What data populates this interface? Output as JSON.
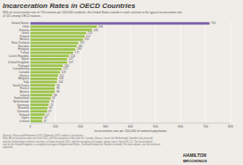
{
  "chart_data": {
    "type": "bar",
    "orientation": "horizontal",
    "title": "Incarceration Rates in OECD Countries",
    "subtitle": "With an incarceration rate of 716 inmates per 100,000 residents, the United States stands in stark contrast to the typical incarceration rate\nof 115 among OECD nations.",
    "xlabel": "Incarceration rate per 100,000 of national population",
    "annotations": [
      "Sources: Glaza and Herberman 2013. Walmsley 2013; authors' calculations.\nNote: All incarceration rates are from 2011, with the exception of the rates for Canada, Greece, Israel, the Netherlands, Sweden (not pictured)\nand the United States of these countries, all data are from 2010, with the exception of Canada, whose rate is from 2011-12. The incarceration\nrate for the United Kingdom is a weighted average of England and Wales, Scotland Ireland (inc Northern Ireland). For more details, see the technical\nappendix.",
      "HAMILTON",
      "BROOKINGS"
    ],
    "categories": [
      "United States",
      "Chile",
      "Estonia",
      "Israel",
      "Poland",
      "Mexico",
      "New Zealand",
      "Slovakia",
      "Hungary",
      "Turkey",
      "Czech Republic",
      "Spain",
      "United Kingdom",
      "Portugal",
      "Luxembourg",
      "Canada",
      "Greece",
      "Belgium",
      "Italy",
      "South Korea",
      "France",
      "Austria",
      "Ireland",
      "Switzerland",
      "Netherlands",
      "Germany",
      "Slovenia",
      "Denmark",
      "Finland",
      "Japan",
      "Iceland"
    ],
    "values": [
      716,
      266,
      246,
      223,
      217,
      210,
      192,
      185,
      180,
      171,
      154,
      147,
      147,
      130,
      125,
      118,
      111,
      108,
      106,
      99,
      98,
      98,
      88,
      82,
      76,
      73,
      69,
      67,
      57,
      49,
      47
    ],
    "colors": [
      "#7b5ea7",
      "#9bc44a",
      "#9bc44a",
      "#9bc44a",
      "#9bc44a",
      "#9bc44a",
      "#9bc44a",
      "#9bc44a",
      "#9bc44a",
      "#9bc44a",
      "#9bc44a",
      "#9bc44a",
      "#9bc44a",
      "#9bc44a",
      "#9bc44a",
      "#9bc44a",
      "#9bc44a",
      "#9bc44a",
      "#9bc44a",
      "#9bc44a",
      "#9bc44a",
      "#9bc44a",
      "#9bc44a",
      "#9bc44a",
      "#9bc44a",
      "#9bc44a",
      "#9bc44a",
      "#9bc44a",
      "#9bc44a",
      "#9bc44a",
      "#9bc44a"
    ],
    "xlim": [
      0,
      800
    ],
    "xticks": [
      0,
      100,
      200,
      300,
      400,
      500,
      600,
      700,
      800
    ],
    "grid": true,
    "data_labels": true
  }
}
